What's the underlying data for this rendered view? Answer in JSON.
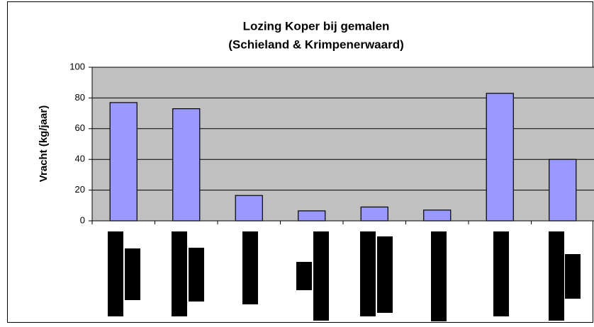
{
  "chart_data": {
    "type": "bar",
    "title": "Lozing Koper bij gemalen",
    "subtitle": "(Schieland & Krimpenerwaard)",
    "y_label": "Vracht (kg/jaar)",
    "categories": [
      null,
      null,
      null,
      null,
      null,
      null,
      null,
      null
    ],
    "values": [
      77,
      73,
      16.5,
      6.5,
      9,
      7,
      83,
      40
    ],
    "color": "#9999ff",
    "plot_background": "#c0c0c0",
    "ylim": [
      0,
      100
    ],
    "yticks": [
      0,
      20,
      40,
      60,
      80,
      100
    ],
    "grid": true
  }
}
